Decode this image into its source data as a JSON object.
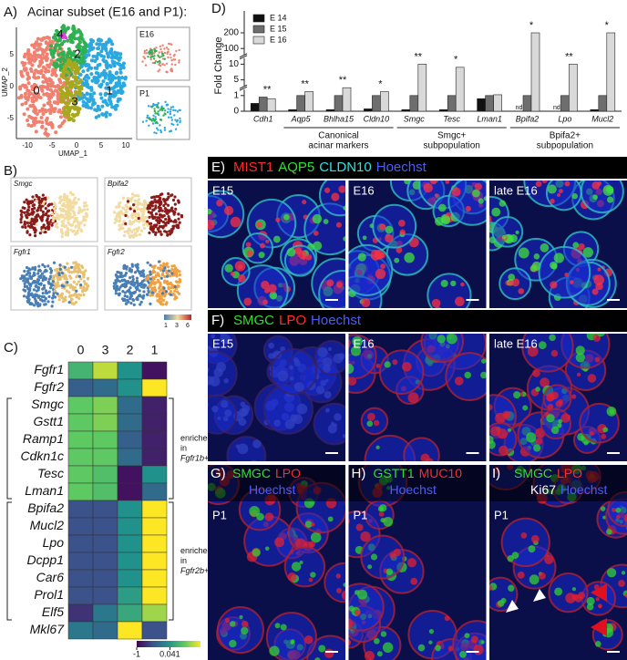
{
  "panel_a": {
    "label": "A)",
    "title": "Acinar subset (E16 and P1):",
    "x_label": "UMAP_1",
    "y_label": "UMAP_2",
    "x_ticks": [
      -10,
      -5,
      0,
      5,
      10
    ],
    "y_ticks": [
      -5,
      0,
      5
    ],
    "clusters": [
      "0",
      "1",
      "2",
      "3",
      "4"
    ],
    "insets": [
      "E16",
      "P1"
    ]
  },
  "panel_b": {
    "label": "B)",
    "genes": [
      "Smgc",
      "Bpifa2",
      "Fgfr1",
      "Fgfr2"
    ],
    "colorbar_ticks": [
      1,
      3,
      6
    ]
  },
  "chart_data": [
    {
      "type": "heatmap",
      "panel_label": "C)",
      "columns": [
        "0",
        "3",
        "2",
        "1"
      ],
      "rows": [
        "Fgfr1",
        "Fgfr2",
        "Smgc",
        "Gstt1",
        "Ramp1",
        "Cdkn1c",
        "Tesc",
        "Lman1",
        "Bpifa2",
        "Mucl2",
        "Lpo",
        "Dcpp1",
        "Car6",
        "Prol1",
        "Elf5",
        "Mkl67"
      ],
      "values": [
        [
          0.3,
          0.8,
          0,
          -0.9
        ],
        [
          -0.4,
          -0.3,
          0,
          1
        ],
        [
          0.5,
          0.6,
          -0.3,
          -0.8
        ],
        [
          0.5,
          0.6,
          -0.3,
          -0.8
        ],
        [
          0.5,
          0.5,
          -0.4,
          -0.8
        ],
        [
          0.5,
          0.5,
          -0.3,
          -0.8
        ],
        [
          0.5,
          0.4,
          -0.9,
          0
        ],
        [
          0.5,
          0.4,
          -0.9,
          -0.3
        ],
        [
          -0.5,
          -0.5,
          0,
          1
        ],
        [
          -0.5,
          -0.5,
          0,
          1
        ],
        [
          -0.5,
          -0.5,
          0,
          1
        ],
        [
          -0.5,
          -0.5,
          0,
          1
        ],
        [
          -0.5,
          -0.5,
          0,
          1
        ],
        [
          -0.5,
          -0.5,
          0.1,
          1
        ],
        [
          -0.7,
          -0.2,
          0.2,
          0.7
        ],
        [
          -0.2,
          -0.3,
          1,
          -0.5
        ]
      ],
      "clim": [
        -1,
        1
      ],
      "colorbar_ticks": [
        -1,
        0.041
      ],
      "colormap": "viridis",
      "brackets": [
        {
          "lines": [
            "enriched",
            "in",
            "Fgfr1b+"
          ],
          "from": "Smgc",
          "to": "Lman1"
        },
        {
          "lines": [
            "enriched",
            "in",
            "Fgfr2b+"
          ],
          "from": "Bpifa2",
          "to": "Elf5"
        }
      ]
    },
    {
      "type": "bar",
      "panel_label": "D)",
      "y_label": "Fold Change",
      "legend": "upper-left",
      "broken_axis": true,
      "categories": [
        "Cdh1",
        "Aqp5",
        "Bhlha15",
        "Cldn10",
        "Smgc",
        "Tesc",
        "Lman1",
        "Bpifa2",
        "Lpo",
        "Mucl2"
      ],
      "series": [
        {
          "name": "E 14",
          "color": "#111111",
          "values": [
            0.5,
            0.1,
            0.1,
            0.15,
            0.1,
            0.1,
            0.8,
            null,
            null,
            0.1
          ]
        },
        {
          "name": "E 15",
          "color": "#6e6e6e",
          "values": [
            0.9,
            1,
            1,
            1,
            1,
            1,
            1,
            1,
            1,
            1
          ]
        },
        {
          "name": "E 16",
          "color": "#d9d9d9",
          "values": [
            0.8,
            2,
            3,
            2,
            10,
            9,
            1.2,
            200,
            10,
            200
          ]
        }
      ],
      "ylim": [
        0,
        300
      ],
      "yticks": [
        0,
        1,
        5,
        10,
        100,
        200
      ],
      "annotations": [
        {
          "text": "**",
          "category": "Cdh1"
        },
        {
          "text": "**",
          "category": "Aqp5"
        },
        {
          "text": "**",
          "category": "Bhlha15"
        },
        {
          "text": "*",
          "category": "Cldn10"
        },
        {
          "text": "**",
          "category": "Smgc"
        },
        {
          "text": "*",
          "category": "Tesc"
        },
        {
          "text": "*",
          "category": "Bpifa2"
        },
        {
          "text": "**",
          "category": "Lpo"
        },
        {
          "text": "*",
          "category": "Mucl2"
        },
        {
          "text": "nd",
          "category": "Bpifa2"
        },
        {
          "text": "nd",
          "category": "Lpo"
        }
      ],
      "groups": [
        {
          "lines": [
            "Canonical",
            "acinar markers"
          ],
          "from": "Aqp5",
          "to": "Cldn10"
        },
        {
          "lines": [
            "Smgc+",
            "subpopulation"
          ],
          "from": "Smgc",
          "to": "Lman1"
        },
        {
          "lines": [
            "Bpifa2+",
            "subpopulation"
          ],
          "from": "Bpifa2",
          "to": "Mucl2"
        }
      ]
    }
  ],
  "panel_e": {
    "label": "E)",
    "stains": [
      [
        {
          "text": "MIST1",
          "color": "#ff2a2a"
        },
        {
          "text": "AQP5",
          "color": "#33dd33"
        },
        {
          "text": "CLDN10",
          "color": "#33e0e0"
        },
        {
          "text": "Hoechst",
          "color": "#4a5cff"
        }
      ]
    ],
    "images": [
      "E15",
      "E16",
      "late E16"
    ]
  },
  "panel_f": {
    "label": "F)",
    "stains": [
      [
        {
          "text": "SMGC",
          "color": "#33dd33"
        },
        {
          "text": "LPO",
          "color": "#ff2a2a"
        },
        {
          "text": "Hoechst",
          "color": "#4a5cff"
        }
      ]
    ],
    "images": [
      "E15",
      "E16",
      "late E16"
    ]
  },
  "panel_g": {
    "label": "G)",
    "stains": [
      [
        {
          "text": "SMGC",
          "color": "#33dd33"
        },
        {
          "text": "LPO",
          "color": "#ff2a2a"
        }
      ],
      [
        {
          "text": "Hoechst",
          "color": "#4a5cff"
        }
      ]
    ],
    "images": [
      "P1"
    ]
  },
  "panel_h": {
    "label": "H)",
    "stains": [
      [
        {
          "text": "GSTT1",
          "color": "#33dd33"
        },
        {
          "text": "MUC10",
          "color": "#ff2a2a"
        }
      ],
      [
        {
          "text": "Hoechst",
          "color": "#4a5cff"
        }
      ]
    ],
    "images": [
      "P1"
    ]
  },
  "panel_i": {
    "label": "I)",
    "stains": [
      [
        {
          "text": "SMGC",
          "color": "#33dd33"
        },
        {
          "text": "LPO",
          "color": "#ff2a2a"
        }
      ],
      [
        {
          "text": "Ki67",
          "color": "#ffffff"
        },
        {
          "text": "Hoechst",
          "color": "#4a5cff"
        }
      ]
    ],
    "images": [
      "P1"
    ]
  }
}
